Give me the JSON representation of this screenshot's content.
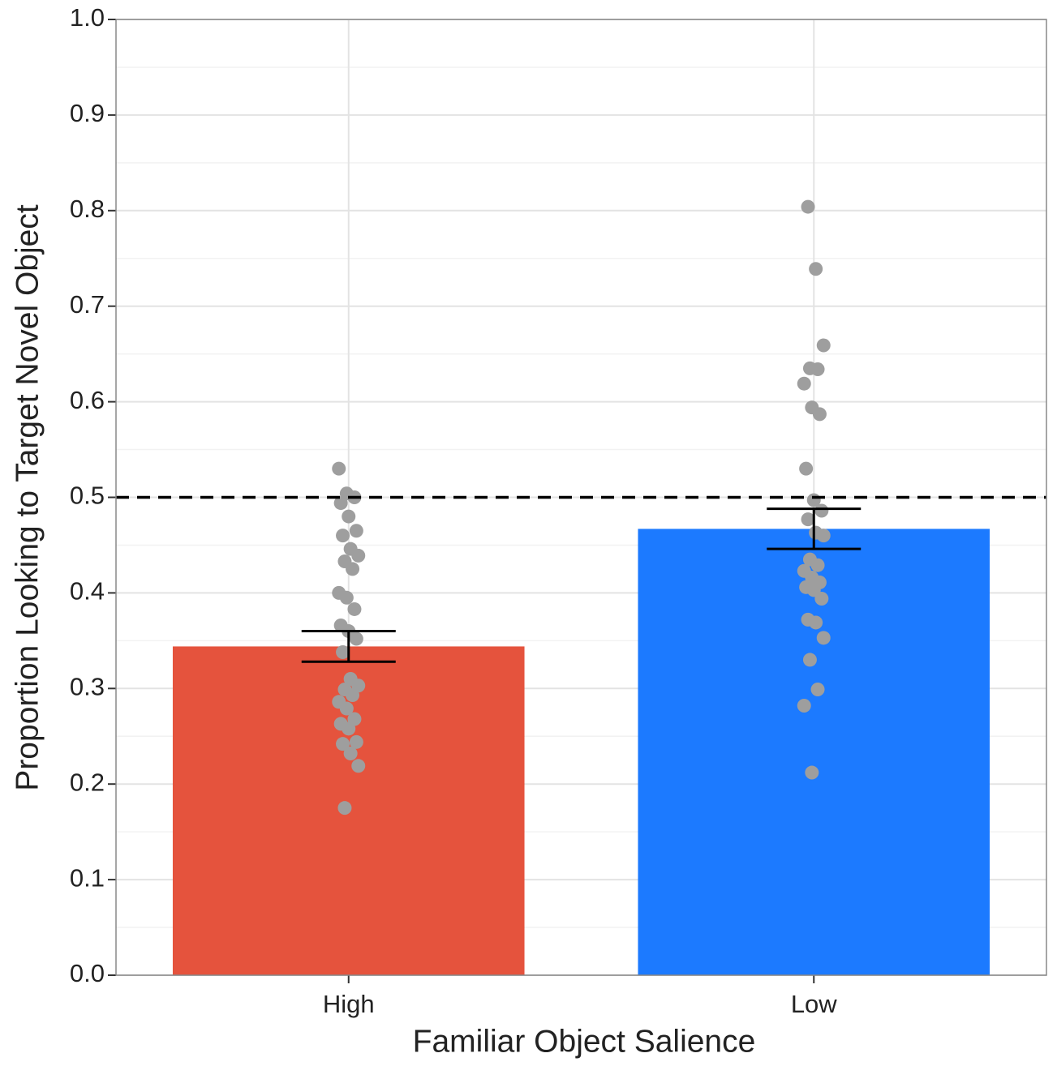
{
  "chart_data": {
    "type": "bar",
    "categories": [
      "High",
      "Low"
    ],
    "values": [
      0.344,
      0.467
    ],
    "errors": [
      0.016,
      0.021
    ],
    "colors": [
      "#e5533d",
      "#1c7aff"
    ],
    "points": [
      [
        0.53,
        0.504,
        0.5,
        0.494,
        0.48,
        0.465,
        0.46,
        0.446,
        0.439,
        0.433,
        0.425,
        0.4,
        0.395,
        0.383,
        0.366,
        0.36,
        0.352,
        0.338,
        0.31,
        0.303,
        0.299,
        0.293,
        0.286,
        0.279,
        0.268,
        0.263,
        0.258,
        0.244,
        0.242,
        0.232,
        0.219,
        0.175
      ],
      [
        0.804,
        0.739,
        0.659,
        0.635,
        0.634,
        0.619,
        0.594,
        0.587,
        0.53,
        0.497,
        0.486,
        0.477,
        0.463,
        0.46,
        0.435,
        0.429,
        0.423,
        0.416,
        0.411,
        0.406,
        0.403,
        0.394,
        0.372,
        0.369,
        0.353,
        0.33,
        0.299,
        0.282,
        0.212
      ]
    ],
    "point_color": "#9e9e9e",
    "hline": 0.5,
    "xlabel": "Familiar Object Salience",
    "ylabel": "Proportion Looking to Target Novel Object",
    "ylim": [
      0,
      1
    ],
    "yticks": [
      {
        "value": 0,
        "label": "0.0"
      },
      0.1,
      0.2,
      0.3,
      0.4,
      0.5,
      0.6,
      0.7,
      0.8,
      0.9,
      {
        "value": 1,
        "label": "1.0"
      }
    ],
    "grid": true
  }
}
